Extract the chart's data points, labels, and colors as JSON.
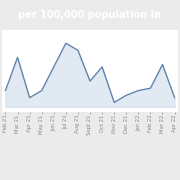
{
  "title": "per 100,000 population in",
  "title_bg": "#4a6fa5",
  "title_color": "#ffffff",
  "x_labels": [
    "Feb 21",
    "Mar 21",
    "Apr 21",
    "May 21",
    "Jun 21",
    "Jul 21",
    "Aug 21",
    "Sept 21",
    "Oct 21",
    "Nov 21",
    "Dec 21",
    "Jan 22",
    "Feb 22",
    "Mar 22",
    "Apr 22"
  ],
  "y_values": [
    1.8,
    3.2,
    1.5,
    1.8,
    2.8,
    3.8,
    3.5,
    2.2,
    2.8,
    1.3,
    1.6,
    1.8,
    1.9,
    2.9,
    1.5
  ],
  "line_color": "#5b7faa",
  "fill_color": "#c5d4e8",
  "bg_color": "#ebebeb",
  "plot_bg": "#ffffff",
  "grid_color": "#d8dce8",
  "tick_fontsize": 3.8,
  "tick_color": "#888888",
  "title_fontsize": 7.0
}
